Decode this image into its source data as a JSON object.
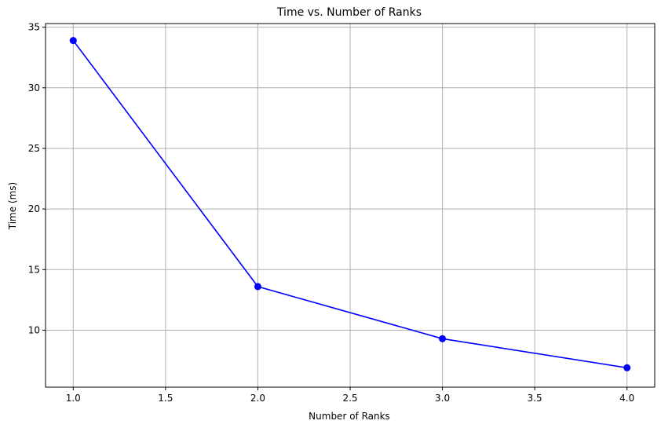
{
  "chart_data": {
    "type": "line",
    "title": "Time vs. Number of Ranks",
    "xlabel": "Number of Ranks",
    "ylabel": "Time (ms)",
    "xlim": [
      0.85,
      4.15
    ],
    "ylim": [
      5.3,
      35.3
    ],
    "xticks": [
      1.0,
      1.5,
      2.0,
      2.5,
      3.0,
      3.5,
      4.0
    ],
    "xtick_labels": [
      "1.0",
      "1.5",
      "2.0",
      "2.5",
      "3.0",
      "3.5",
      "4.0"
    ],
    "yticks": [
      10,
      15,
      20,
      25,
      30,
      35
    ],
    "ytick_labels": [
      "10",
      "15",
      "20",
      "25",
      "30",
      "35"
    ],
    "grid": true,
    "series": [
      {
        "x": [
          1,
          2,
          3,
          4
        ],
        "y": [
          33.9,
          13.6,
          9.3,
          6.9
        ],
        "color": "#0000ff",
        "marker": "circle"
      }
    ]
  }
}
